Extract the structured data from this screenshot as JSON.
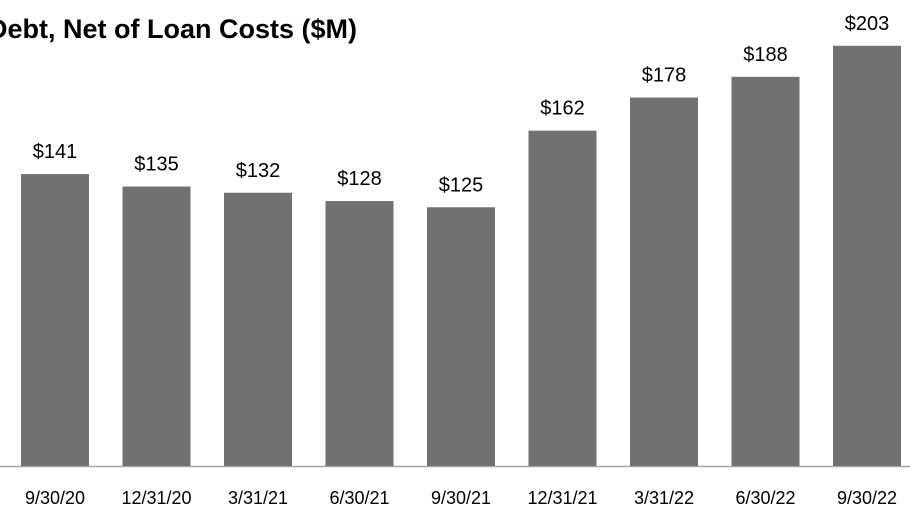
{
  "chart_data": {
    "type": "bar",
    "title": "Debt, Net of Loan Costs ($M)",
    "categories": [
      "9/30/20",
      "12/31/20",
      "3/31/21",
      "6/30/21",
      "9/30/21",
      "12/31/21",
      "3/31/22",
      "6/30/22",
      "9/30/22"
    ],
    "values": [
      141,
      135,
      132,
      128,
      125,
      162,
      178,
      188,
      203
    ],
    "value_labels": [
      "$141",
      "$135",
      "$132",
      "$128",
      "$125",
      "$162",
      "$178",
      "$188",
      "$203"
    ],
    "color": "#717171"
  }
}
